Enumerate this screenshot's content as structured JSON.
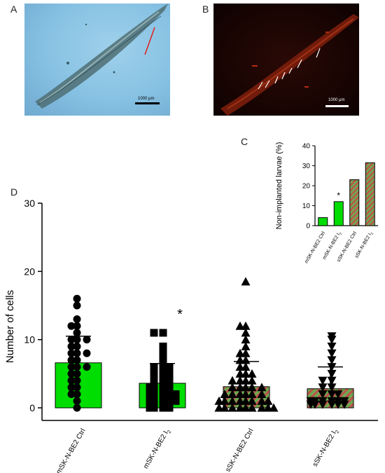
{
  "panels": {
    "a": {
      "letter": "A",
      "scale_label": "1000 μm"
    },
    "b": {
      "letter": "B",
      "scale_label": "1000 μm"
    },
    "c": {
      "letter": "C"
    },
    "d": {
      "letter": "D"
    }
  },
  "colors": {
    "green": "#00dd00",
    "hatch_red": "#c0504d",
    "hatch_green": "#6fa84f",
    "annotation_red": "#e02020",
    "black": "#000000"
  },
  "chart_data": [
    {
      "id": "C",
      "type": "bar",
      "title": "",
      "ylabel": "Non-implanted  larvae (%)",
      "ylim": [
        0,
        40
      ],
      "yticks": [
        "0",
        "10",
        "20",
        "30",
        "40"
      ],
      "categories": [
        "mSK-N-BE2 Ctrl",
        "mSK-N-BE2 I2",
        "sSK-N-BE2 Ctrl",
        "sSK-N-BE2 I2"
      ],
      "values": [
        4,
        12,
        23,
        31.5
      ],
      "fills": [
        "solid-green",
        "solid-green",
        "hatched",
        "hatched"
      ],
      "annotations": [
        {
          "category": "mSK-N-BE2 I2",
          "text": "*"
        }
      ]
    },
    {
      "id": "D",
      "type": "bar",
      "title": "",
      "ylabel": "Number of cells",
      "ylim": [
        0,
        30
      ],
      "yticks": [
        "0",
        "10",
        "20",
        "30"
      ],
      "categories": [
        "mSK-N-BE2 Ctrl",
        "mSK-N-BE2 I2",
        "sSK-N-BE2 Ctrl",
        "sSK-N-BE2 I2"
      ],
      "means": [
        6.6,
        3.6,
        3.1,
        2.8
      ],
      "sd_upper": [
        10.5,
        6.5,
        6.8,
        6.0
      ],
      "markers": [
        "circle",
        "square",
        "triangle-up",
        "triangle-down"
      ],
      "fills": [
        "solid-green",
        "solid-green",
        "hatched",
        "hatched"
      ],
      "annotations": [
        {
          "category": "mSK-N-BE2 I2",
          "text": "*"
        }
      ],
      "points": [
        [
          16,
          15,
          13,
          12,
          12,
          11,
          10,
          10,
          10,
          9,
          9,
          8,
          8,
          8,
          7,
          7,
          6,
          6,
          6,
          5,
          5,
          4,
          4,
          3,
          3,
          2,
          2,
          1,
          0
        ],
        [
          11,
          11,
          9,
          8,
          7,
          6,
          6,
          6,
          5,
          5,
          5,
          4,
          4,
          4,
          3,
          3,
          3,
          3,
          2,
          2,
          2,
          2,
          2,
          1,
          1,
          1,
          1,
          1,
          0,
          0,
          0,
          0
        ],
        [
          18.5,
          12,
          12,
          11,
          10,
          9,
          8,
          8,
          7,
          7,
          6,
          6,
          5,
          5,
          5,
          4,
          4,
          4,
          4,
          3,
          3,
          3,
          3,
          3,
          2,
          2,
          2,
          2,
          2,
          2,
          1,
          1,
          1,
          1,
          1,
          1,
          1,
          1,
          0,
          0,
          0,
          0,
          0,
          0,
          0,
          0,
          0,
          0
        ],
        [
          10.5,
          10,
          9,
          8,
          7,
          6,
          5,
          4,
          4,
          3,
          3,
          2,
          2,
          2,
          1,
          1,
          1,
          1,
          1,
          1,
          0.5,
          0.5,
          0.5,
          0.5,
          0.5,
          0.5
        ]
      ]
    }
  ]
}
